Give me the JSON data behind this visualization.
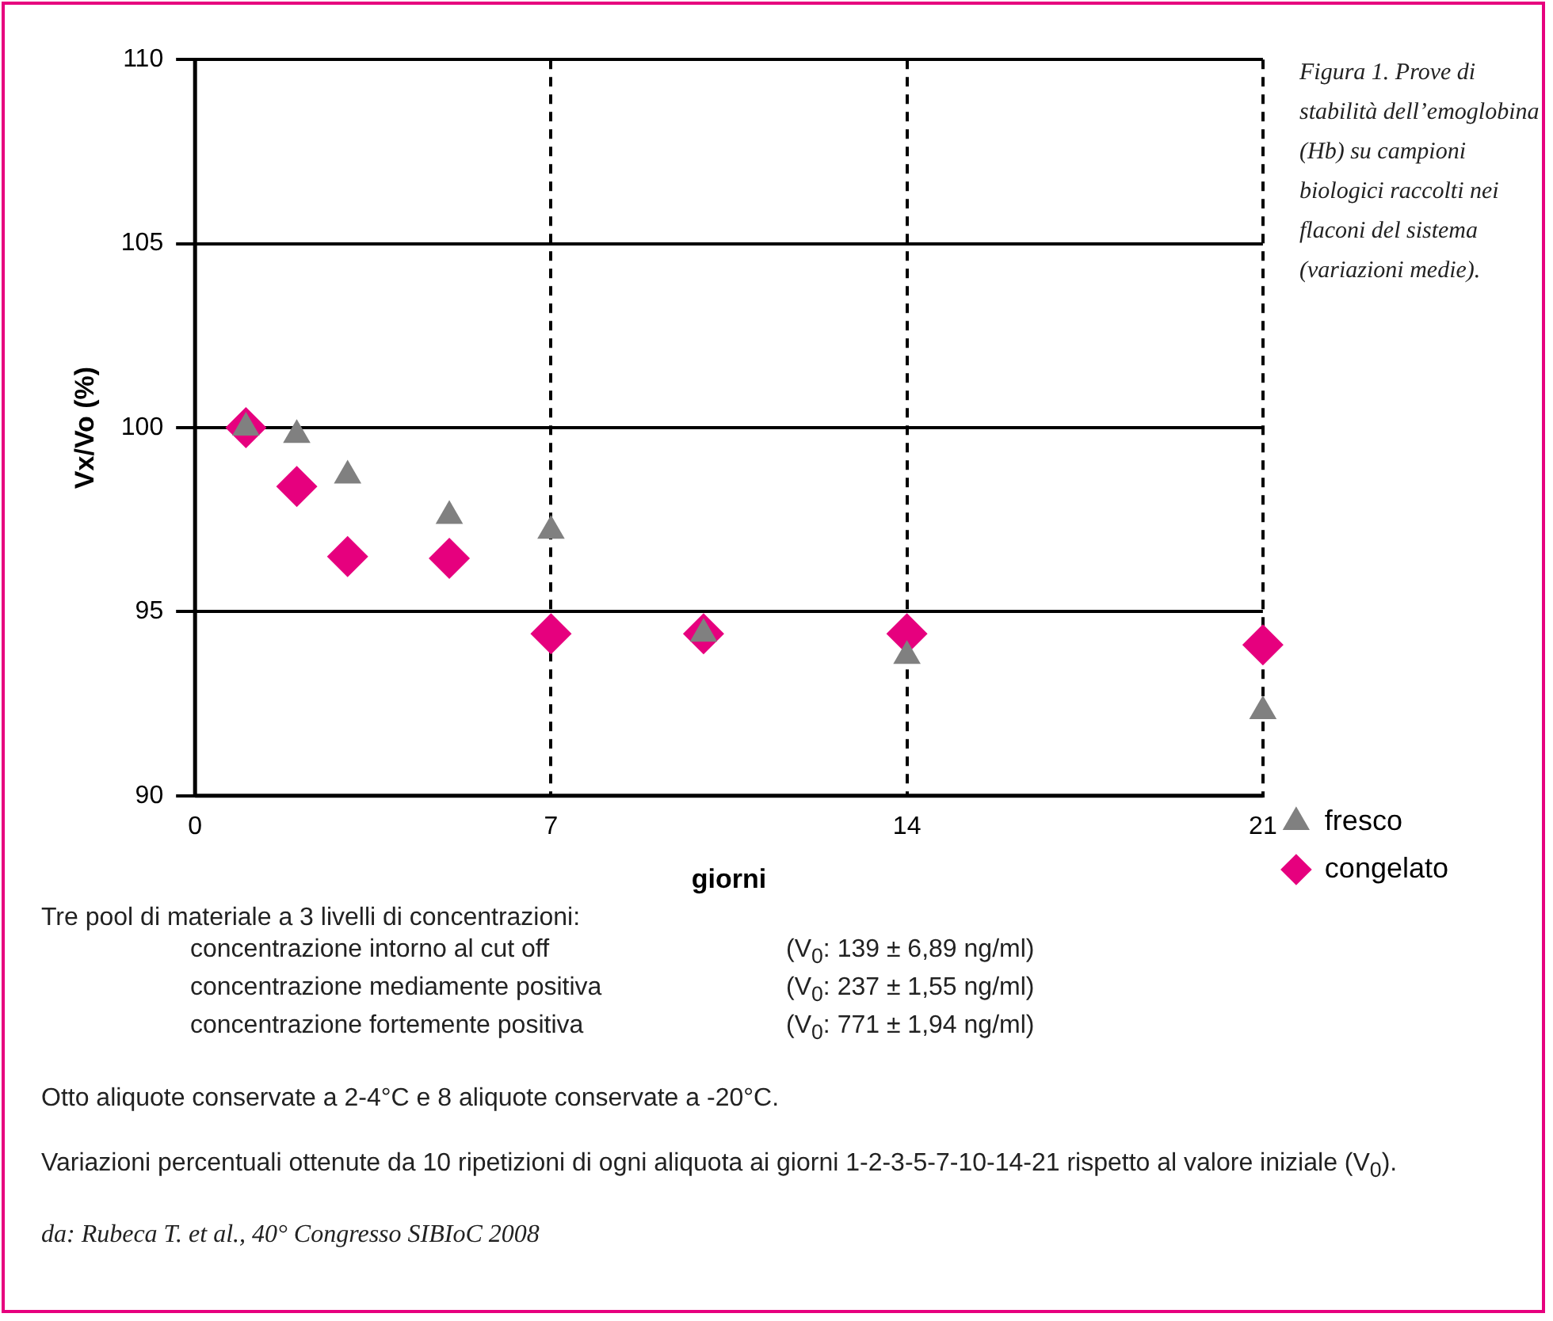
{
  "chart_data": {
    "type": "scatter",
    "title": "Figura 1. Prove di stabilità dell’emoglobina (Hb) su campioni biologici raccolti nei flaconi del sistema (variazioni medie).",
    "xlabel": "giorni",
    "ylabel": "Vx/Vo (%)",
    "x": [
      1,
      2,
      3,
      5,
      7,
      10,
      14,
      21
    ],
    "series": [
      {
        "name": "fresco",
        "color": "#808080",
        "marker": "triangle",
        "values": [
          100.0,
          99.8,
          98.7,
          97.6,
          97.2,
          94.4,
          93.8,
          92.3
        ]
      },
      {
        "name": "congelato",
        "color": "#e6007e",
        "marker": "diamond",
        "values": [
          100.0,
          98.4,
          96.5,
          96.45,
          94.4,
          94.4,
          94.4,
          94.1
        ]
      }
    ],
    "xlim": [
      0,
      21
    ],
    "xticks": [
      0,
      7,
      14,
      21
    ],
    "ylim": [
      90,
      110
    ],
    "yticks": [
      90,
      95,
      100,
      105,
      110
    ],
    "grid": true,
    "legend": "bottom right",
    "annotations": [
      "Tre pool di materiale a 3 livelli di concentrazioni:",
      "concentrazione intorno al cut off",
      "(V$_{0}$: 139 ± 6,89 ng/ml)",
      "concentrazione mediamente positiva",
      "(V$_{0}$: 237 ± 1,55 ng/ml)",
      "concentrazione fortemente positiva",
      "(V$_{0}$: 771 ± 1,94 ng/ml)",
      "Otto aliquote conservate a 2-4°C e 8 aliquote conservate a -20°C.",
      "Variazioni percentuali ottenute da 10 ripetizioni di ogni aliquota ai giorni 1-2-3-5-7-10-14-21 rispetto al valore iniziale (V$_{0}$).",
      "da: Rubeca T. et al., 40° Congresso SIBIoC 2008"
    ]
  }
}
